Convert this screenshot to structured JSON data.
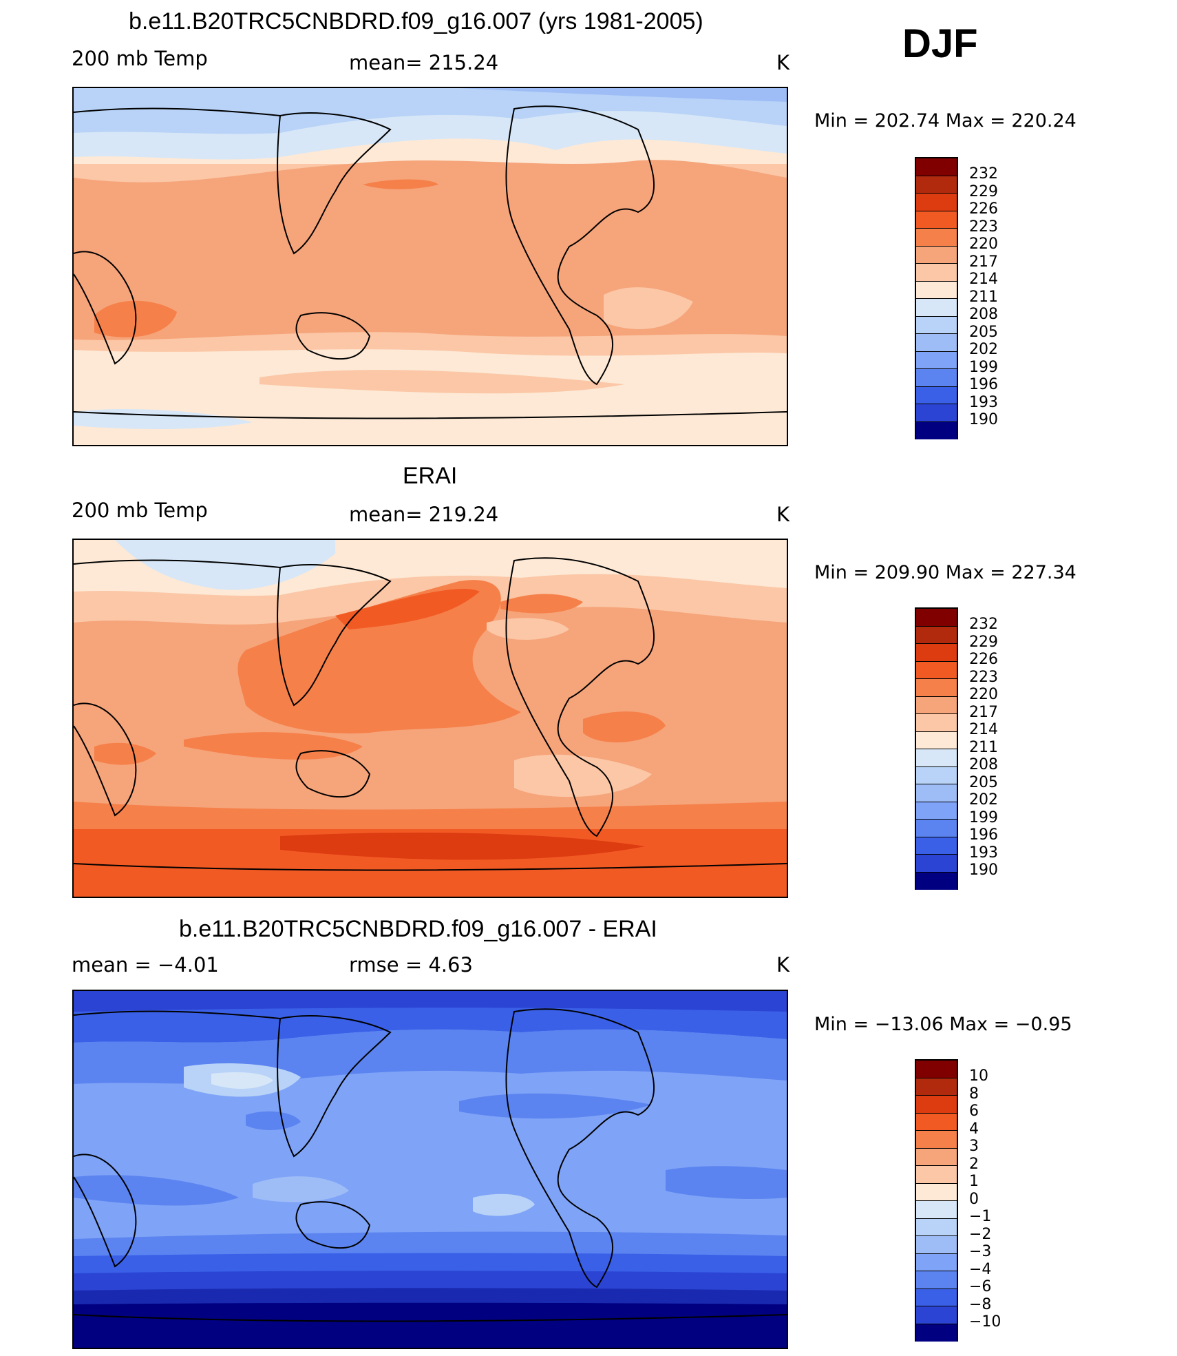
{
  "season": "DJF",
  "panels": [
    {
      "title": "b.e11.B20TRC5CNBDRD.f09_g16.007 (yrs 1981-2005)",
      "left_label": "200 mb Temp",
      "center_label": "mean= 215.24",
      "units": "K",
      "min_max": "Min = 202.74 Max = 220.24"
    },
    {
      "title": "ERAI",
      "left_label": "200 mb Temp",
      "center_label": "mean= 219.24",
      "units": "K",
      "min_max": "Min = 209.90 Max = 227.34"
    },
    {
      "title": "b.e11.B20TRC5CNBDRD.f09_g16.007 - ERAI",
      "left_label": "mean =    −4.01",
      "center_label": "rmse =     4.63",
      "units": "K",
      "min_max": "Min = −13.06 Max =   −0.95"
    }
  ],
  "colorbar_abs": {
    "labels": [
      "232",
      "229",
      "226",
      "223",
      "220",
      "217",
      "214",
      "211",
      "208",
      "205",
      "202",
      "199",
      "196",
      "193",
      "190"
    ],
    "colors": [
      "#800000",
      "#b22a0e",
      "#dd3b10",
      "#f25a24",
      "#f5804a",
      "#f6a47a",
      "#fbc7a6",
      "#fde9d6",
      "#d7e7f7",
      "#b8d3f7",
      "#9ebdf7",
      "#7fa3f7",
      "#5b84f0",
      "#3a60e8",
      "#2b44d3",
      "#1a2ab0",
      "#000080"
    ]
  },
  "colorbar_diff": {
    "labels": [
      "10",
      "8",
      "6",
      "4",
      "3",
      "2",
      "1",
      "0",
      "−1",
      "−2",
      "−3",
      "−4",
      "−6",
      "−8",
      "−10"
    ],
    "colors": [
      "#800000",
      "#b22a0e",
      "#dd3b10",
      "#f25a24",
      "#f5804a",
      "#f6a47a",
      "#fbc7a6",
      "#fde9d6",
      "#d7e7f7",
      "#b8d3f7",
      "#9ebdf7",
      "#7fa3f7",
      "#5b84f0",
      "#3a60e8",
      "#2b44d3",
      "#1a2ab0",
      "#000080"
    ]
  }
}
